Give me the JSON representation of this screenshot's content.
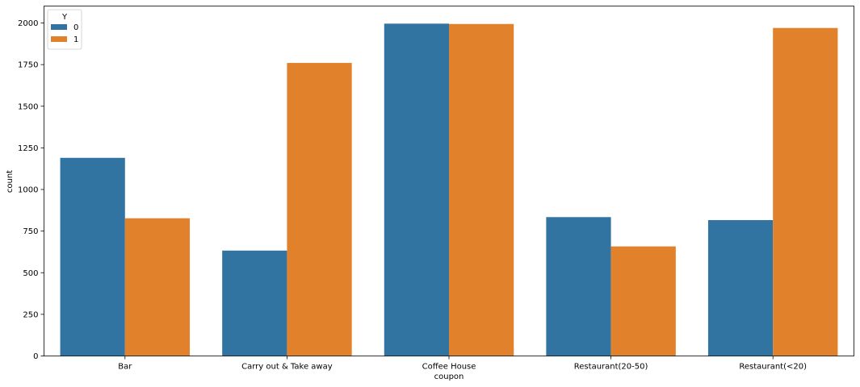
{
  "chart_data": {
    "type": "bar",
    "categories": [
      "Bar",
      "Carry out & Take away",
      "Coffee House",
      "Restaurant(20-50)",
      "Restaurant(<20)"
    ],
    "series": [
      {
        "name": "0",
        "values": [
          1190,
          633,
          1996,
          834,
          816
        ],
        "color": "#3274a1"
      },
      {
        "name": "1",
        "values": [
          827,
          1760,
          1994,
          658,
          1970
        ],
        "color": "#e1812c"
      }
    ],
    "xlabel": "coupon",
    "ylabel": "count",
    "ylim": [
      0,
      2100
    ],
    "yticks": [
      0,
      250,
      500,
      750,
      1000,
      1250,
      1500,
      1750,
      2000
    ],
    "legend": {
      "title": "Y",
      "placement": "top-left"
    },
    "grid": false
  }
}
